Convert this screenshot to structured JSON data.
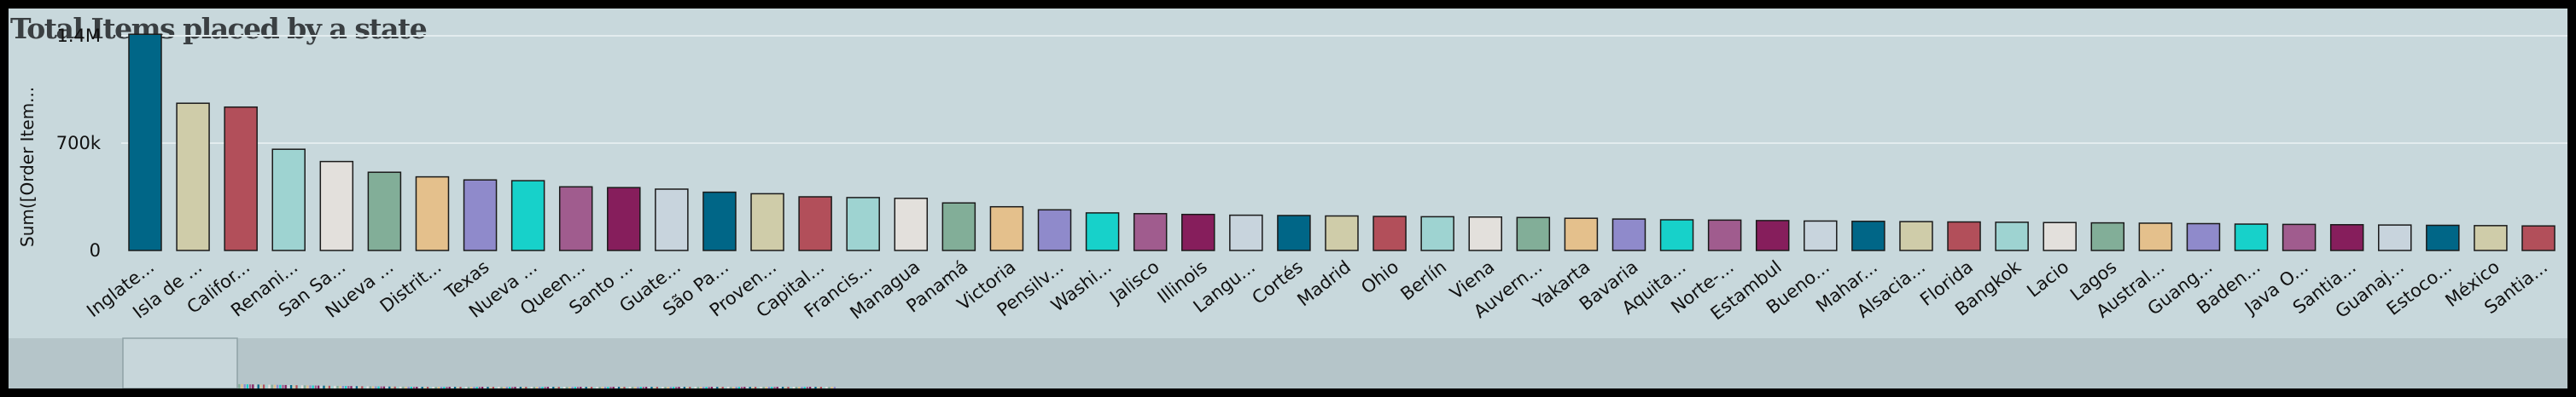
{
  "colors": {
    "background": "#c8d8dc",
    "border": "#000000",
    "gridline": "#e3ecee",
    "scrollbar_track": "#b5c5c9",
    "scrollbar_thumb": "#c7d6da",
    "palette": [
      "#006687",
      "#cfcca9",
      "#b24f5a",
      "#9ed3d1",
      "#e3e0dc",
      "#82ae98",
      "#e4c08c",
      "#8f8acb",
      "#17d1ca",
      "#a05c8e",
      "#861e5c",
      "#c8d4dd"
    ]
  },
  "chart_data": {
    "type": "bar",
    "title": "Total Items placed by a state",
    "ylabel": "Sum([Order Item...",
    "xlabel": "",
    "ylim": [
      0,
      1500000
    ],
    "yticks": [
      0,
      700000,
      1400000
    ],
    "ytick_labels": [
      "0",
      "700k",
      "1.4M"
    ],
    "grid": true,
    "categories": [
      "Inglate...",
      "Isla de ...",
      "Califor...",
      "Renani...",
      "San Sa...",
      "Nueva ...",
      "Distrit...",
      "Texas",
      "Nueva ...",
      "Queen...",
      "Santo ...",
      "Guate...",
      "São Pa...",
      "Proven...",
      "Capital...",
      "Francis...",
      "Managua",
      "Panamá",
      "Victoria",
      "Pensilv...",
      "Washi...",
      "Jalisco",
      "Illinois",
      "Langu...",
      "Cortés",
      "Madrid",
      "Ohio",
      "Berlín",
      "Viena",
      "Auvern...",
      "Yakarta",
      "Bavaria",
      "Aquita...",
      "Norte-...",
      "Estambul",
      "Bueno...",
      "Mahar...",
      "Alsacia...",
      "Florida",
      "Bangkok",
      "Lacio",
      "Lagos",
      "Austral...",
      "Guang...",
      "Baden...",
      "Java O...",
      "Santia...",
      "Guanaj...",
      "Estoco...",
      "México",
      "Santia..."
    ],
    "values": [
      1410000,
      960000,
      935000,
      660000,
      580000,
      510000,
      480000,
      460000,
      455000,
      415000,
      410000,
      400000,
      380000,
      370000,
      350000,
      345000,
      340000,
      310000,
      285000,
      265000,
      245000,
      240000,
      235000,
      230000,
      228000,
      225000,
      222000,
      220000,
      218000,
      215000,
      210000,
      205000,
      200000,
      198000,
      195000,
      192000,
      190000,
      188000,
      186000,
      184000,
      182000,
      180000,
      178000,
      175000,
      172000,
      170000,
      168000,
      166000,
      164000,
      162000,
      160000
    ]
  }
}
